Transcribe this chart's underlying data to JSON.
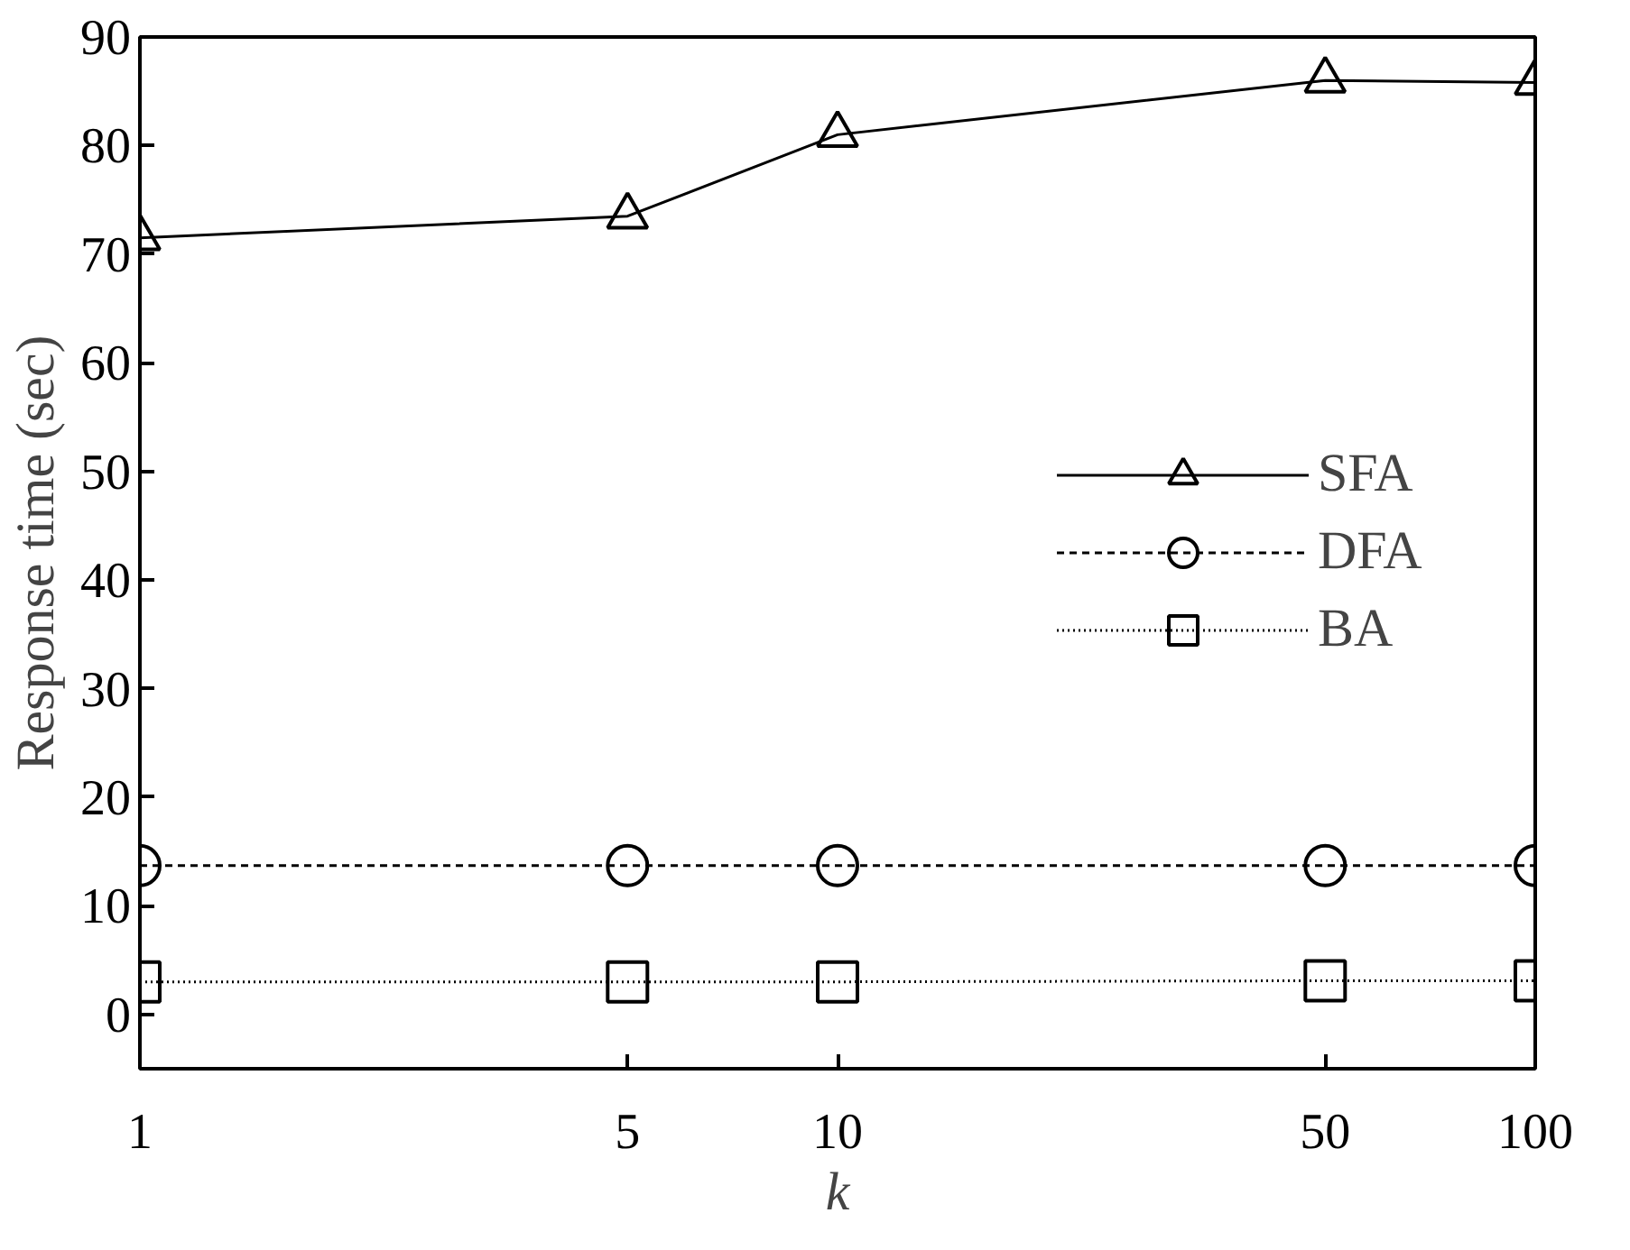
{
  "chart_data": {
    "type": "line",
    "xlabel": "k",
    "ylabel": "Response time (sec)",
    "x": [
      1,
      5,
      10,
      50,
      100
    ],
    "log": "x",
    "xlim": [
      1,
      100
    ],
    "xticks": [
      1,
      5,
      10,
      50,
      100
    ],
    "ylim": [
      -5,
      90
    ],
    "yticks": [
      0,
      10,
      20,
      30,
      40,
      50,
      60,
      70,
      80,
      90
    ],
    "grid": false,
    "legend": "right",
    "series": [
      {
        "name": "SFA",
        "color": "#000000",
        "values": [
          71.5,
          73.5,
          81,
          86,
          85.8
        ],
        "marker": "triangle",
        "line_style": "solid"
      },
      {
        "name": "DFA",
        "color": "#000000",
        "values": [
          13.7,
          13.7,
          13.7,
          13.7,
          13.7
        ],
        "marker": "circle",
        "line_style": "dashed"
      },
      {
        "name": "BA",
        "color": "#000000",
        "values": [
          3,
          3,
          3,
          3.1,
          3.1
        ],
        "marker": "square",
        "line_style": "dotted"
      }
    ]
  }
}
